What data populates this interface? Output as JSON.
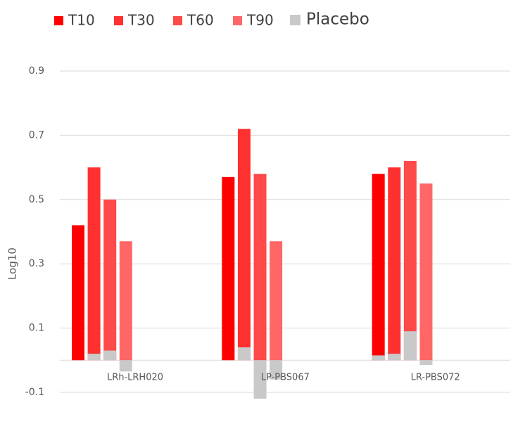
{
  "chart_data": {
    "type": "bar",
    "y_label": "Log10",
    "categories": [
      "LRh-LRH020",
      "LP-PBS067",
      "LR-PBS072"
    ],
    "series": [
      {
        "name": "T10",
        "color": "#ff0000",
        "values": [
          0.42,
          0.57,
          0.58
        ]
      },
      {
        "name": "T30",
        "color": "#ff3030",
        "values": [
          0.6,
          0.72,
          0.6
        ]
      },
      {
        "name": "T60",
        "color": "#ff4a4a",
        "values": [
          0.5,
          0.58,
          0.62
        ]
      },
      {
        "name": "T90",
        "color": "#ff6666",
        "values": [
          0.37,
          0.37,
          0.55
        ]
      }
    ],
    "placebo": {
      "name": "Placebo",
      "color": "#c9c9c9",
      "values": [
        [
          0,
          0.02,
          0.03,
          -0.035
        ],
        [
          0,
          0.04,
          -0.12,
          -0.06
        ],
        [
          0.015,
          0.02,
          0.09,
          -0.015
        ]
      ]
    },
    "ylim": [
      -0.13,
      0.9
    ],
    "yticks": [
      -0.1,
      0.1,
      0.3,
      0.5,
      0.7,
      0.9
    ],
    "grid": true
  }
}
